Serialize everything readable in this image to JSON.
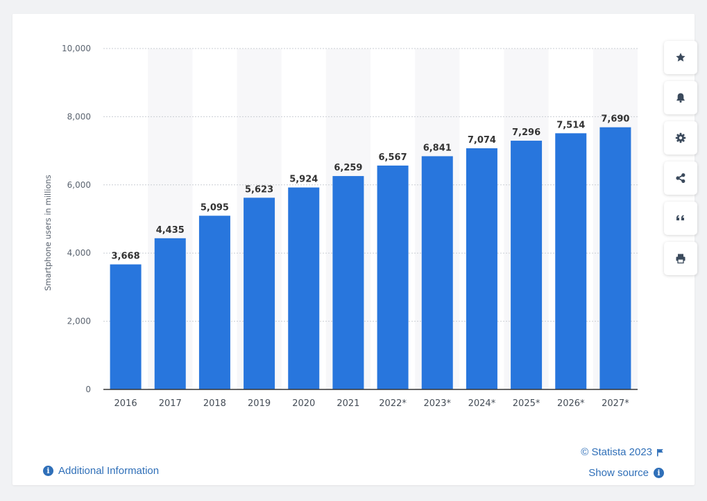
{
  "chart_data": {
    "type": "bar",
    "categories": [
      "2016",
      "2017",
      "2018",
      "2019",
      "2020",
      "2021",
      "2022*",
      "2023*",
      "2024*",
      "2025*",
      "2026*",
      "2027*"
    ],
    "values": [
      3668,
      4435,
      5095,
      5623,
      5924,
      6259,
      6567,
      6841,
      7074,
      7296,
      7514,
      7690
    ],
    "value_labels": [
      "3,668",
      "4,435",
      "5,095",
      "5,623",
      "5,924",
      "6,259",
      "6,567",
      "6,841",
      "7,074",
      "7,296",
      "7,514",
      "7,690"
    ],
    "ylabel": "Smartphone users in millions",
    "ylim": [
      0,
      10000
    ],
    "yticks": [
      0,
      2000,
      4000,
      6000,
      8000,
      10000
    ],
    "ytick_labels": [
      "0",
      "2,000",
      "4,000",
      "6,000",
      "8,000",
      "10,000"
    ],
    "grid": true,
    "bar_color": "#2876dd",
    "alt_band_color": "#f7f7f9"
  },
  "sidebar": {
    "buttons": [
      {
        "name": "favorite-button",
        "icon": "star-icon"
      },
      {
        "name": "notification-button",
        "icon": "bell-icon"
      },
      {
        "name": "settings-button",
        "icon": "gear-icon"
      },
      {
        "name": "share-button",
        "icon": "share-icon"
      },
      {
        "name": "cite-button",
        "icon": "quote-icon"
      },
      {
        "name": "print-button",
        "icon": "printer-icon"
      }
    ]
  },
  "footer": {
    "additional_info": "Additional Information",
    "credit": "© Statista 2023",
    "show_source": "Show source"
  },
  "colors": {
    "accent": "#2f6fb8",
    "icon": "#3b4a5c"
  }
}
